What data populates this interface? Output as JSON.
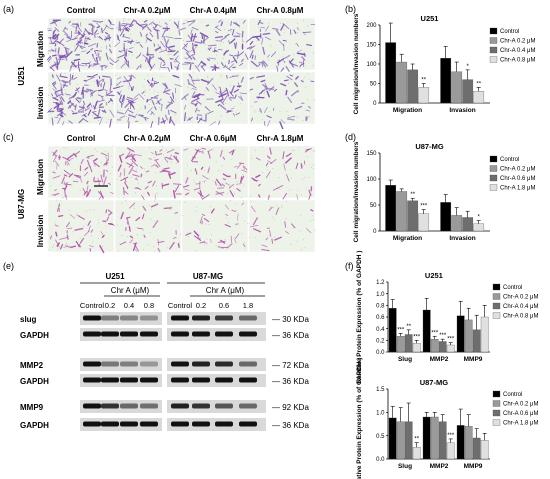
{
  "panel_labels": [
    "(a)",
    "(b)",
    "(c)",
    "(d)",
    "(e)",
    "(f)"
  ],
  "panel_a": {
    "columns": [
      "Control",
      "Chr-A 0.2μM",
      "Chr-A 0.4μM",
      "Chr-A 0.8μM"
    ],
    "rows": [
      "Migration",
      "Invasion"
    ],
    "cell_line": "U251",
    "stain_color": "#7b4fb3"
  },
  "panel_c": {
    "columns": [
      "Control",
      "Chr-A 0.2μM",
      "Chr-A 0.6μM",
      "Chr-A 1.8μM"
    ],
    "rows": [
      "Migration",
      "Invasion"
    ],
    "cell_line": "U87-MG",
    "stain_color": "#b04aa6"
  },
  "panel_e": {
    "cell_lines": [
      "U251",
      "U87-MG"
    ],
    "treatment_label": "Chr A (μM)",
    "lanes": [
      [
        "Control",
        "0.2",
        "0.4",
        "0.8"
      ],
      [
        "Control",
        "0.2",
        "0.6",
        "1.8"
      ]
    ],
    "proteins": [
      {
        "name": "slug",
        "size": "30 KDa"
      },
      {
        "name": "GAPDH",
        "size": "36 KDa"
      },
      {
        "name": "MMP2",
        "size": "72 KDa"
      },
      {
        "name": "GAPDH",
        "size": "36 KDa"
      },
      {
        "name": "MMP9",
        "size": "92 KDa"
      },
      {
        "name": "GAPDH",
        "size": "36 KDa"
      }
    ]
  },
  "chart_data": [
    {
      "type": "bar",
      "panel": "(b)",
      "title": "U251",
      "ylabel": "Cell migration/invasion numbers",
      "categories": [
        "Migration",
        "Invasion"
      ],
      "ylim": [
        0,
        200
      ],
      "yticks": [
        "0",
        "50",
        "100",
        "150",
        "200"
      ],
      "series": [
        {
          "name": "Control",
          "color": "#000000",
          "values": [
            155,
            115
          ],
          "errors": [
            50,
            30
          ]
        },
        {
          "name": "Chr-A 0.2 μM",
          "color": "#9a9a9a",
          "values": [
            105,
            80
          ],
          "errors": [
            20,
            25
          ]
        },
        {
          "name": "Chr-A 0.4 μM",
          "color": "#6e6e6e",
          "values": [
            85,
            60
          ],
          "errors": [
            15,
            25
          ]
        },
        {
          "name": "Chr-A 0.8 μM",
          "color": "#e0e0e0",
          "values": [
            40,
            30
          ],
          "errors": [
            10,
            10
          ]
        }
      ],
      "annotations": [
        {
          "category": "Migration",
          "series": "Chr-A 0.8 μM",
          "text": "**"
        },
        {
          "category": "Invasion",
          "series": "Chr-A 0.4 μM",
          "text": "*"
        },
        {
          "category": "Invasion",
          "series": "Chr-A 0.8 μM",
          "text": "**"
        }
      ]
    },
    {
      "type": "bar",
      "panel": "(d)",
      "title": "U87-MG",
      "ylabel": "Cell migration/invasion numbers",
      "categories": [
        "Migration",
        "Invasion"
      ],
      "ylim": [
        0,
        150
      ],
      "yticks": [
        "0",
        "50",
        "100",
        "150"
      ],
      "series": [
        {
          "name": "Control",
          "color": "#000000",
          "values": [
            88,
            55
          ],
          "errors": [
            10,
            15
          ]
        },
        {
          "name": "Chr-A 0.2 μM",
          "color": "#9a9a9a",
          "values": [
            76,
            30
          ],
          "errors": [
            5,
            15
          ]
        },
        {
          "name": "Chr-A 0.6 μM",
          "color": "#6e6e6e",
          "values": [
            58,
            26
          ],
          "errors": [
            5,
            12
          ]
        },
        {
          "name": "Chr-A 1.8 μM",
          "color": "#e0e0e0",
          "values": [
            33,
            14
          ],
          "errors": [
            8,
            6
          ]
        }
      ],
      "annotations": [
        {
          "category": "Migration",
          "series": "Chr-A 0.6 μM",
          "text": "**"
        },
        {
          "category": "Migration",
          "series": "Chr-A 1.8 μM",
          "text": "***"
        },
        {
          "category": "Invasion",
          "series": "Chr-A 1.8 μM",
          "text": "*"
        }
      ]
    },
    {
      "type": "bar",
      "panel": "(f)",
      "title": "U251",
      "ylabel": "Relative Protein Expression (% of GAPDH )",
      "categories": [
        "Slug",
        "MMP2",
        "MMP9"
      ],
      "ylim": [
        0,
        1.2
      ],
      "yticks": [
        "0.0",
        "0.2",
        "0.4",
        "0.6",
        "0.8",
        "1.0",
        "1.2"
      ],
      "series": [
        {
          "name": "Control",
          "color": "#000000",
          "values": [
            0.75,
            0.72,
            0.62
          ],
          "errors": [
            0.15,
            0.2,
            0.25
          ]
        },
        {
          "name": "Chr-A 0.2 μM",
          "color": "#9a9a9a",
          "values": [
            0.27,
            0.22,
            0.55
          ],
          "errors": [
            0.05,
            0.05,
            0.2
          ]
        },
        {
          "name": "Chr-A 0.4 μM",
          "color": "#6e6e6e",
          "values": [
            0.3,
            0.18,
            0.38
          ],
          "errors": [
            0.08,
            0.04,
            0.25
          ]
        },
        {
          "name": "Chr-A 0.8 μM",
          "color": "#e0e0e0",
          "values": [
            0.15,
            0.12,
            0.6
          ],
          "errors": [
            0.05,
            0.04,
            0.2
          ]
        }
      ],
      "annotations": [
        {
          "category": "Slug",
          "series": "Chr-A 0.2 μM",
          "text": "***"
        },
        {
          "category": "Slug",
          "series": "Chr-A 0.4 μM",
          "text": "**"
        },
        {
          "category": "Slug",
          "series": "Chr-A 0.8 μM",
          "text": "***"
        },
        {
          "category": "MMP2",
          "series": "Chr-A 0.2 μM",
          "text": "***"
        },
        {
          "category": "MMP2",
          "series": "Chr-A 0.4 μM",
          "text": "***"
        },
        {
          "category": "MMP2",
          "series": "Chr-A 0.8 μM",
          "text": "***"
        }
      ]
    },
    {
      "type": "bar",
      "panel": "(f)",
      "title": "U87-MG",
      "ylabel": "Relative Protein Expression (% of GAPDH )",
      "categories": [
        "Slug",
        "MMP2",
        "MMP9"
      ],
      "ylim": [
        0,
        1.5
      ],
      "yticks": [
        "0.0",
        "0.5",
        "1.0",
        "1.5"
      ],
      "series": [
        {
          "name": "Control",
          "color": "#000000",
          "values": [
            0.88,
            0.9,
            0.72
          ],
          "errors": [
            0.25,
            0.1,
            0.35
          ]
        },
        {
          "name": "Chr-A 0.2 μM",
          "color": "#9a9a9a",
          "values": [
            0.8,
            0.9,
            0.7
          ],
          "errors": [
            0.3,
            0.1,
            0.25
          ]
        },
        {
          "name": "Chr-A 0.6 μM",
          "color": "#6e6e6e",
          "values": [
            0.8,
            0.8,
            0.45
          ],
          "errors": [
            0.4,
            0.15,
            0.2
          ]
        },
        {
          "name": "Chr-A 1.8 μM",
          "color": "#e0e0e0",
          "values": [
            0.25,
            0.35,
            0.4
          ],
          "errors": [
            0.1,
            0.08,
            0.15
          ]
        }
      ],
      "annotations": [
        {
          "category": "Slug",
          "series": "Chr-A 1.8 μM",
          "text": "**"
        },
        {
          "category": "MMP2",
          "series": "Chr-A 1.8 μM",
          "text": "***"
        }
      ]
    }
  ]
}
